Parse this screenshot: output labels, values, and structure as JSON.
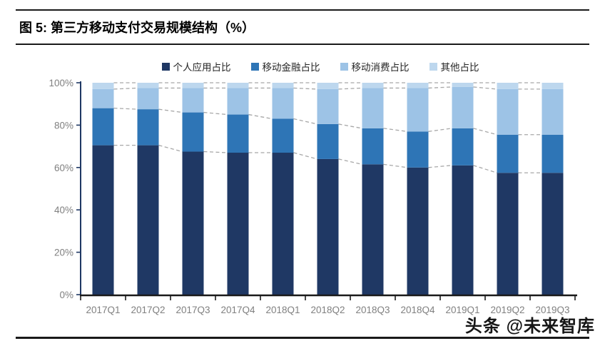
{
  "figure": {
    "title": "图 5: 第三方移动支付交易规模结构（%）",
    "watermark": "头条 @未来智库"
  },
  "chart_data": {
    "type": "bar",
    "stacked": true,
    "title": "第三方移动支付交易规模结构（%）",
    "categories": [
      "2017Q1",
      "2017Q2",
      "2017Q3",
      "2017Q4",
      "2018Q1",
      "2018Q2",
      "2018Q3",
      "2018Q4",
      "2019Q1",
      "2019Q2",
      "2019Q3"
    ],
    "series": [
      {
        "name": "个人应用占比",
        "color": "#1F3864",
        "values": [
          70.5,
          70.5,
          67.5,
          67.0,
          67.0,
          64.0,
          61.5,
          60.0,
          61.0,
          57.5,
          57.5
        ]
      },
      {
        "name": "移动金融占比",
        "color": "#2E75B6",
        "values": [
          17.5,
          17.0,
          18.5,
          18.0,
          16.0,
          16.5,
          17.0,
          17.0,
          17.5,
          18.0,
          18.0
        ]
      },
      {
        "name": "移动消费占比",
        "color": "#9DC3E6",
        "values": [
          9.0,
          10.0,
          11.5,
          12.5,
          14.5,
          16.5,
          19.0,
          20.5,
          19.5,
          21.5,
          21.5
        ]
      },
      {
        "name": "其他占比",
        "color": "#BDD7EE",
        "values": [
          3.0,
          2.5,
          2.5,
          2.5,
          2.5,
          3.0,
          2.5,
          2.5,
          2.0,
          3.0,
          3.0
        ]
      }
    ],
    "xlabel": "",
    "ylabel": "",
    "ylim": [
      0,
      100
    ],
    "ytick_labels": [
      "0%",
      "20%",
      "40%",
      "60%",
      "80%",
      "100%"
    ],
    "ytick_values": [
      0,
      20,
      40,
      60,
      80,
      100
    ],
    "legend_position": "top",
    "grid": false,
    "connector_lines": {
      "style": "dashed",
      "color": "#A8A8A8"
    },
    "axis_colors": {
      "y_axis": "#1F3864",
      "x_axis": "#1a1a1a",
      "tick_label": "#808080"
    }
  }
}
